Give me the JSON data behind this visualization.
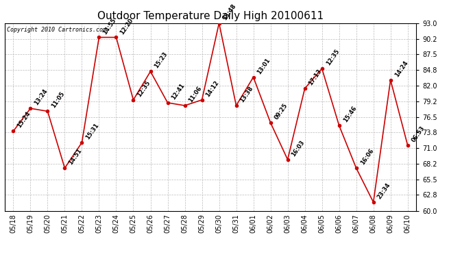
{
  "title": "Outdoor Temperature Daily High 20100611",
  "copyright": "Copyright 2010 Cartronics.com",
  "dates": [
    "05/18",
    "05/19",
    "05/20",
    "05/21",
    "05/22",
    "05/23",
    "05/24",
    "05/25",
    "05/26",
    "05/27",
    "05/28",
    "05/29",
    "05/30",
    "05/31",
    "06/01",
    "06/02",
    "06/03",
    "06/04",
    "06/05",
    "06/06",
    "06/07",
    "06/08",
    "06/09",
    "06/10"
  ],
  "temps": [
    74.0,
    78.0,
    77.5,
    67.5,
    72.0,
    90.5,
    90.5,
    79.5,
    84.5,
    79.0,
    78.5,
    79.5,
    93.0,
    78.5,
    83.5,
    75.5,
    69.0,
    81.5,
    85.0,
    75.0,
    67.5,
    61.5,
    83.0,
    71.5
  ],
  "times": [
    "15:24",
    "13:24",
    "11:05",
    "14:51",
    "15:31",
    "14:55",
    "12:20",
    "12:35",
    "15:23",
    "12:41",
    "11:06",
    "14:12",
    "13:48",
    "13:38",
    "13:01",
    "09:25",
    "16:03",
    "17:13",
    "12:35",
    "15:46",
    "16:06",
    "23:34",
    "14:24",
    "06:53"
  ],
  "ylim": [
    60.0,
    93.0
  ],
  "yticks": [
    60.0,
    62.8,
    65.5,
    68.2,
    71.0,
    73.8,
    76.5,
    79.2,
    82.0,
    84.8,
    87.5,
    90.2,
    93.0
  ],
  "line_color": "#cc0000",
  "marker_color": "#cc0000",
  "bg_color": "#ffffff",
  "grid_color": "#bbbbbb",
  "title_fontsize": 11,
  "annotation_fontsize": 6.0,
  "tick_fontsize": 7.0,
  "copyright_fontsize": 6.0
}
